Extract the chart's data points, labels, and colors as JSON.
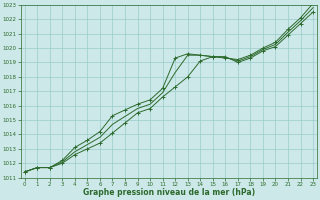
{
  "xlabel": "Graphe pression niveau de la mer (hPa)",
  "x": [
    0,
    1,
    2,
    3,
    4,
    5,
    6,
    7,
    8,
    9,
    10,
    11,
    12,
    13,
    14,
    15,
    16,
    17,
    18,
    19,
    20,
    21,
    22,
    23
  ],
  "line_upper": [
    1011.4,
    1011.7,
    1011.7,
    1012.2,
    1013.1,
    1013.6,
    1014.2,
    1015.3,
    1015.7,
    1016.1,
    1016.4,
    1017.2,
    1019.3,
    1019.6,
    1019.5,
    1019.4,
    1019.3,
    1019.2,
    1019.5,
    1020.0,
    1020.4,
    1021.3,
    1022.1,
    1023.1
  ],
  "line_lower": [
    1011.4,
    1011.7,
    1011.7,
    1012.0,
    1012.6,
    1013.0,
    1013.4,
    1014.1,
    1014.8,
    1015.5,
    1015.8,
    1016.6,
    1017.3,
    1018.0,
    1019.1,
    1019.4,
    1019.4,
    1019.0,
    1019.3,
    1019.8,
    1020.1,
    1020.9,
    1021.7,
    1022.5
  ],
  "line_mid": [
    1011.4,
    1011.7,
    1011.7,
    1012.1,
    1012.8,
    1013.3,
    1013.8,
    1014.7,
    1015.25,
    1015.8,
    1016.1,
    1016.9,
    1018.3,
    1019.5,
    1019.5,
    1019.4,
    1019.35,
    1019.1,
    1019.4,
    1019.9,
    1020.25,
    1021.1,
    1021.9,
    1022.8
  ],
  "line_color": "#2d6a2d",
  "bg_color": "#cce8e8",
  "grid_color": "#99cccc",
  "axis_color": "#2d6a2d",
  "ylim_min": 1011,
  "ylim_max": 1023,
  "yticks": [
    1011,
    1012,
    1013,
    1014,
    1015,
    1016,
    1017,
    1018,
    1019,
    1020,
    1021,
    1022,
    1023
  ],
  "xticks": [
    0,
    1,
    2,
    3,
    4,
    5,
    6,
    7,
    8,
    9,
    10,
    11,
    12,
    13,
    14,
    15,
    16,
    17,
    18,
    19,
    20,
    21,
    22,
    23
  ],
  "tick_fontsize": 4.0,
  "xlabel_fontsize": 5.5
}
